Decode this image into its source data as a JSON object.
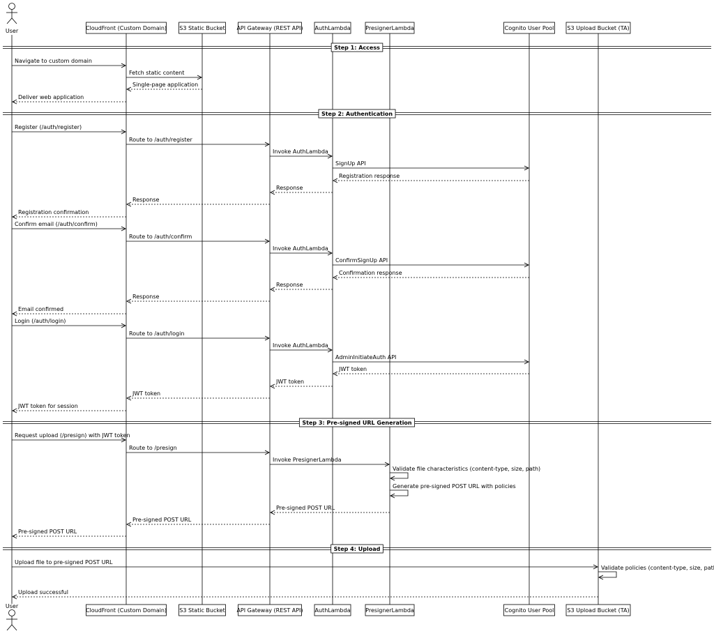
{
  "actor": {
    "name": "User"
  },
  "participants": [
    {
      "id": "cf",
      "label": "CloudFront (Custom Domain)"
    },
    {
      "id": "s3s",
      "label": "S3 Static Bucket"
    },
    {
      "id": "apigw",
      "label": "API Gateway (REST API)"
    },
    {
      "id": "auth",
      "label": "AuthLambda"
    },
    {
      "id": "pres",
      "label": "PresignerLambda"
    },
    {
      "id": "cog",
      "label": "Cognito User Pool"
    },
    {
      "id": "s3u",
      "label": "S3 Upload Bucket (TA)"
    }
  ],
  "sections": [
    {
      "label": "Step 1: Access"
    },
    {
      "label": "Step 2: Authentication"
    },
    {
      "label": "Step 3: Pre-signed URL Generation"
    },
    {
      "label": "Step 4: Upload"
    }
  ],
  "messages": [
    {
      "from": "user",
      "to": "cf",
      "label": "Navigate to custom domain",
      "type": "sync"
    },
    {
      "from": "cf",
      "to": "s3s",
      "label": "Fetch static content",
      "type": "sync"
    },
    {
      "from": "s3s",
      "to": "cf",
      "label": "Single-page application",
      "type": "return"
    },
    {
      "from": "cf",
      "to": "user",
      "label": "Deliver web application",
      "type": "return"
    },
    {
      "from": "user",
      "to": "cf",
      "label": "Register (/auth/register)",
      "type": "sync"
    },
    {
      "from": "cf",
      "to": "apigw",
      "label": "Route to /auth/register",
      "type": "sync"
    },
    {
      "from": "apigw",
      "to": "auth",
      "label": "Invoke AuthLambda",
      "type": "sync"
    },
    {
      "from": "auth",
      "to": "cog",
      "label": "SignUp API",
      "type": "sync"
    },
    {
      "from": "cog",
      "to": "auth",
      "label": "Registration response",
      "type": "return"
    },
    {
      "from": "auth",
      "to": "apigw",
      "label": "Response",
      "type": "return"
    },
    {
      "from": "apigw",
      "to": "cf",
      "label": "Response",
      "type": "return"
    },
    {
      "from": "cf",
      "to": "user",
      "label": "Registration confirmation",
      "type": "return"
    },
    {
      "from": "user",
      "to": "cf",
      "label": "Confirm email (/auth/confirm)",
      "type": "sync"
    },
    {
      "from": "cf",
      "to": "apigw",
      "label": "Route to /auth/confirm",
      "type": "sync"
    },
    {
      "from": "apigw",
      "to": "auth",
      "label": "Invoke AuthLambda",
      "type": "sync"
    },
    {
      "from": "auth",
      "to": "cog",
      "label": "ConfirmSignUp API",
      "type": "sync"
    },
    {
      "from": "cog",
      "to": "auth",
      "label": "Confirmation response",
      "type": "return"
    },
    {
      "from": "auth",
      "to": "apigw",
      "label": "Response",
      "type": "return"
    },
    {
      "from": "apigw",
      "to": "cf",
      "label": "Response",
      "type": "return"
    },
    {
      "from": "cf",
      "to": "user",
      "label": "Email confirmed",
      "type": "return"
    },
    {
      "from": "user",
      "to": "cf",
      "label": "Login (/auth/login)",
      "type": "sync"
    },
    {
      "from": "cf",
      "to": "apigw",
      "label": "Route to /auth/login",
      "type": "sync"
    },
    {
      "from": "apigw",
      "to": "auth",
      "label": "Invoke AuthLambda",
      "type": "sync"
    },
    {
      "from": "auth",
      "to": "cog",
      "label": "AdminInitiateAuth API",
      "type": "sync"
    },
    {
      "from": "cog",
      "to": "auth",
      "label": "JWT token",
      "type": "return"
    },
    {
      "from": "auth",
      "to": "apigw",
      "label": "JWT token",
      "type": "return"
    },
    {
      "from": "apigw",
      "to": "cf",
      "label": "JWT token",
      "type": "return"
    },
    {
      "from": "cf",
      "to": "user",
      "label": "JWT token for session",
      "type": "return"
    },
    {
      "from": "user",
      "to": "cf",
      "label": "Request upload (/presign) with JWT token",
      "type": "sync"
    },
    {
      "from": "cf",
      "to": "apigw",
      "label": "Route to /presign",
      "type": "sync"
    },
    {
      "from": "apigw",
      "to": "pres",
      "label": "Invoke PresignerLambda",
      "type": "sync"
    },
    {
      "from": "pres",
      "to": "pres",
      "label": "Validate file characteristics (content-type, size, path)",
      "type": "self"
    },
    {
      "from": "pres",
      "to": "pres",
      "label": "Generate pre-signed POST URL with policies",
      "type": "self"
    },
    {
      "from": "pres",
      "to": "apigw",
      "label": "Pre-signed POST URL",
      "type": "return"
    },
    {
      "from": "apigw",
      "to": "cf",
      "label": "Pre-signed POST URL",
      "type": "return"
    },
    {
      "from": "cf",
      "to": "user",
      "label": "Pre-signed POST URL",
      "type": "return"
    },
    {
      "from": "user",
      "to": "s3u",
      "label": "Upload file to pre-signed POST URL",
      "type": "sync"
    },
    {
      "from": "s3u",
      "to": "s3u",
      "label": "Validate policies (content-type, size, path)",
      "type": "self"
    },
    {
      "from": "s3u",
      "to": "user",
      "label": "Upload successful",
      "type": "return"
    }
  ]
}
